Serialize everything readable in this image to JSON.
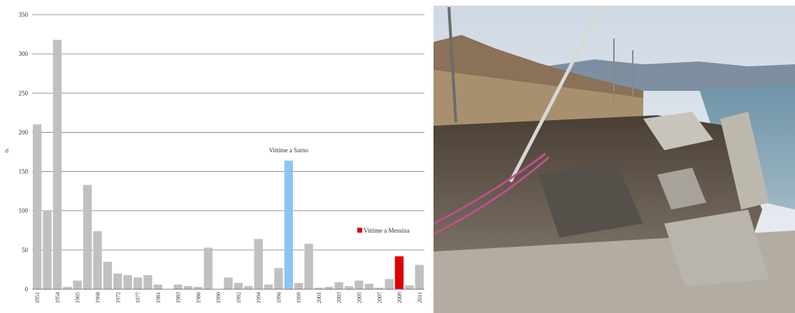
{
  "chart_data": {
    "type": "bar",
    "y_label": "n.",
    "categories": [
      "1951",
      null,
      "1954",
      null,
      "1965",
      null,
      "1968",
      null,
      "1972",
      null,
      "1977",
      null,
      "1981",
      null,
      "1983",
      null,
      "1986",
      null,
      "1990",
      null,
      "1992",
      null,
      "1994",
      null,
      "1996",
      null,
      "1999",
      null,
      "2001",
      null,
      "2003",
      null,
      "2005",
      null,
      "2007",
      null,
      "2009",
      null,
      "2011"
    ],
    "values": [
      210,
      100,
      318,
      3,
      11,
      133,
      74,
      35,
      20,
      18,
      15,
      18,
      6,
      0,
      6,
      4,
      3,
      53,
      0,
      15,
      8,
      4,
      64,
      6,
      27,
      164,
      8,
      58,
      2,
      3,
      9,
      4,
      11,
      7,
      2,
      13,
      42,
      5,
      31
    ],
    "colors": [
      "#c0c0c0",
      "#c0c0c0",
      "#c0c0c0",
      "#c0c0c0",
      "#c0c0c0",
      "#c0c0c0",
      "#c0c0c0",
      "#c0c0c0",
      "#c0c0c0",
      "#c0c0c0",
      "#c0c0c0",
      "#c0c0c0",
      "#c0c0c0",
      "#c0c0c0",
      "#c0c0c0",
      "#c0c0c0",
      "#c0c0c0",
      "#c0c0c0",
      "#c0c0c0",
      "#c0c0c0",
      "#c0c0c0",
      "#c0c0c0",
      "#c0c0c0",
      "#c0c0c0",
      "#c0c0c0",
      "#8ec5f0",
      "#c0c0c0",
      "#c0c0c0",
      "#c0c0c0",
      "#c0c0c0",
      "#c0c0c0",
      "#c0c0c0",
      "#c0c0c0",
      "#c0c0c0",
      "#c0c0c0",
      "#c0c0c0",
      "#e00000",
      "#c0c0c0",
      "#c0c0c0"
    ],
    "annotation": {
      "text": "Vittime a Sarno",
      "index": 25
    },
    "legend": {
      "name": "Vittime a Messina",
      "color": "#e00000"
    },
    "ylim": [
      0,
      350
    ],
    "yticks": [
      0,
      50,
      100,
      150,
      200,
      250,
      300,
      350
    ],
    "grid": true
  }
}
